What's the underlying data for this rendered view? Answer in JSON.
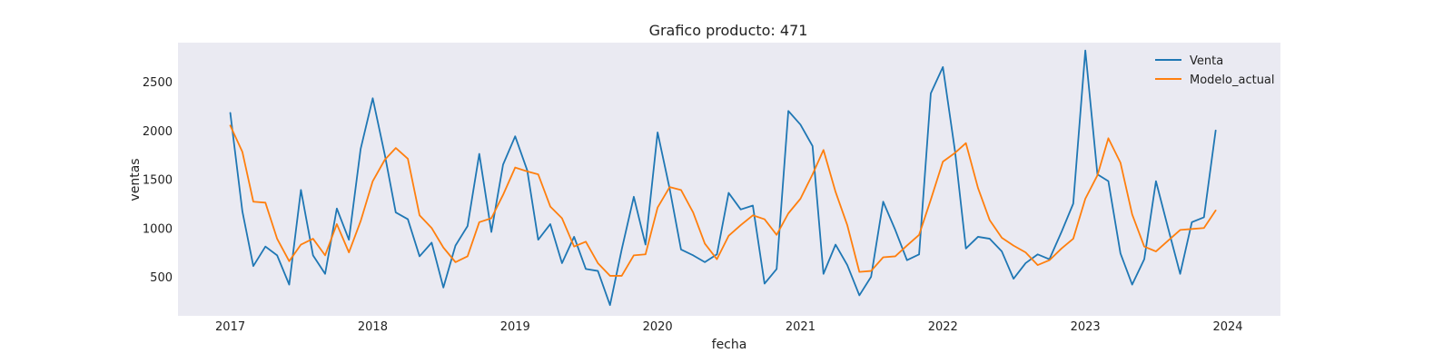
{
  "chart_data": {
    "type": "line",
    "title": "Grafico producto: 471",
    "xlabel": "fecha",
    "ylabel": "ventas",
    "xlim": [
      "2016-08-20",
      "2024-05-15"
    ],
    "ylim": [
      100,
      2900
    ],
    "x_ticks": [
      {
        "label": "2017",
        "value": "2017-01-01"
      },
      {
        "label": "2018",
        "value": "2018-01-01"
      },
      {
        "label": "2019",
        "value": "2019-01-01"
      },
      {
        "label": "2020",
        "value": "2020-01-01"
      },
      {
        "label": "2021",
        "value": "2021-01-01"
      },
      {
        "label": "2022",
        "value": "2022-01-01"
      },
      {
        "label": "2023",
        "value": "2023-01-01"
      },
      {
        "label": "2024",
        "value": "2024-01-01"
      }
    ],
    "y_ticks": [
      500,
      1000,
      1500,
      2000,
      2500
    ],
    "grid": false,
    "legend_position": "top-right",
    "background": "#EAEAF2",
    "x": [
      "2017-01-01",
      "2017-02-01",
      "2017-03-01",
      "2017-04-01",
      "2017-05-01",
      "2017-06-01",
      "2017-07-01",
      "2017-08-01",
      "2017-09-01",
      "2017-10-01",
      "2017-11-01",
      "2017-12-01",
      "2018-01-01",
      "2018-02-01",
      "2018-03-01",
      "2018-04-01",
      "2018-05-01",
      "2018-06-01",
      "2018-07-01",
      "2018-08-01",
      "2018-09-01",
      "2018-10-01",
      "2018-11-01",
      "2018-12-01",
      "2019-01-01",
      "2019-02-01",
      "2019-03-01",
      "2019-04-01",
      "2019-05-01",
      "2019-06-01",
      "2019-07-01",
      "2019-08-01",
      "2019-09-01",
      "2019-10-01",
      "2019-11-01",
      "2019-12-01",
      "2020-01-01",
      "2020-02-01",
      "2020-03-01",
      "2020-04-01",
      "2020-05-01",
      "2020-06-01",
      "2020-07-01",
      "2020-08-01",
      "2020-09-01",
      "2020-10-01",
      "2020-11-01",
      "2020-12-01",
      "2021-01-01",
      "2021-02-01",
      "2021-03-01",
      "2021-04-01",
      "2021-05-01",
      "2021-06-01",
      "2021-07-01",
      "2021-08-01",
      "2021-09-01",
      "2021-10-01",
      "2021-11-01",
      "2021-12-01",
      "2022-01-01",
      "2022-02-01",
      "2022-03-01",
      "2022-04-01",
      "2022-05-01",
      "2022-06-01",
      "2022-07-01",
      "2022-08-01",
      "2022-09-01",
      "2022-10-01",
      "2022-11-01",
      "2022-12-01",
      "2023-01-01",
      "2023-02-01",
      "2023-03-01",
      "2023-04-01",
      "2023-05-01",
      "2023-06-01",
      "2023-07-01",
      "2023-08-01",
      "2023-09-01",
      "2023-10-01",
      "2023-11-01",
      "2023-12-01"
    ],
    "series": [
      {
        "name": "Venta",
        "color": "#1F77B4",
        "values": [
          2180,
          1170,
          610,
          810,
          720,
          420,
          1390,
          720,
          530,
          1200,
          880,
          1810,
          2330,
          1750,
          1160,
          1090,
          710,
          850,
          390,
          820,
          1020,
          1760,
          960,
          1650,
          1940,
          1590,
          880,
          1040,
          640,
          910,
          580,
          560,
          210,
          780,
          1320,
          830,
          1980,
          1400,
          780,
          720,
          650,
          730,
          1360,
          1190,
          1230,
          430,
          580,
          2200,
          2060,
          1840,
          530,
          830,
          620,
          310,
          500,
          1270,
          980,
          670,
          730,
          2380,
          2650,
          1790,
          790,
          910,
          890,
          760,
          480,
          640,
          730,
          680,
          960,
          1250,
          2820,
          1550,
          1480,
          740,
          420,
          680,
          1480,
          1000,
          530,
          1060,
          1110,
          2000
        ]
      },
      {
        "name": "Modelo_actual",
        "color": "#FF7F0E",
        "values": [
          2050,
          1780,
          1270,
          1260,
          890,
          660,
          830,
          890,
          720,
          1040,
          750,
          1070,
          1480,
          1700,
          1820,
          1710,
          1130,
          1000,
          800,
          650,
          710,
          1060,
          1100,
          1340,
          1620,
          1580,
          1550,
          1220,
          1100,
          810,
          860,
          640,
          510,
          510,
          720,
          730,
          1210,
          1420,
          1390,
          1160,
          840,
          680,
          920,
          1030,
          1130,
          1090,
          930,
          1150,
          1300,
          1550,
          1800,
          1370,
          1030,
          550,
          560,
          700,
          710,
          820,
          930,
          1290,
          1680,
          1770,
          1870,
          1410,
          1080,
          900,
          820,
          750,
          620,
          670,
          790,
          890,
          1300,
          1540,
          1920,
          1670,
          1140,
          810,
          760,
          870,
          980,
          990,
          1000,
          1180
        ]
      }
    ]
  }
}
